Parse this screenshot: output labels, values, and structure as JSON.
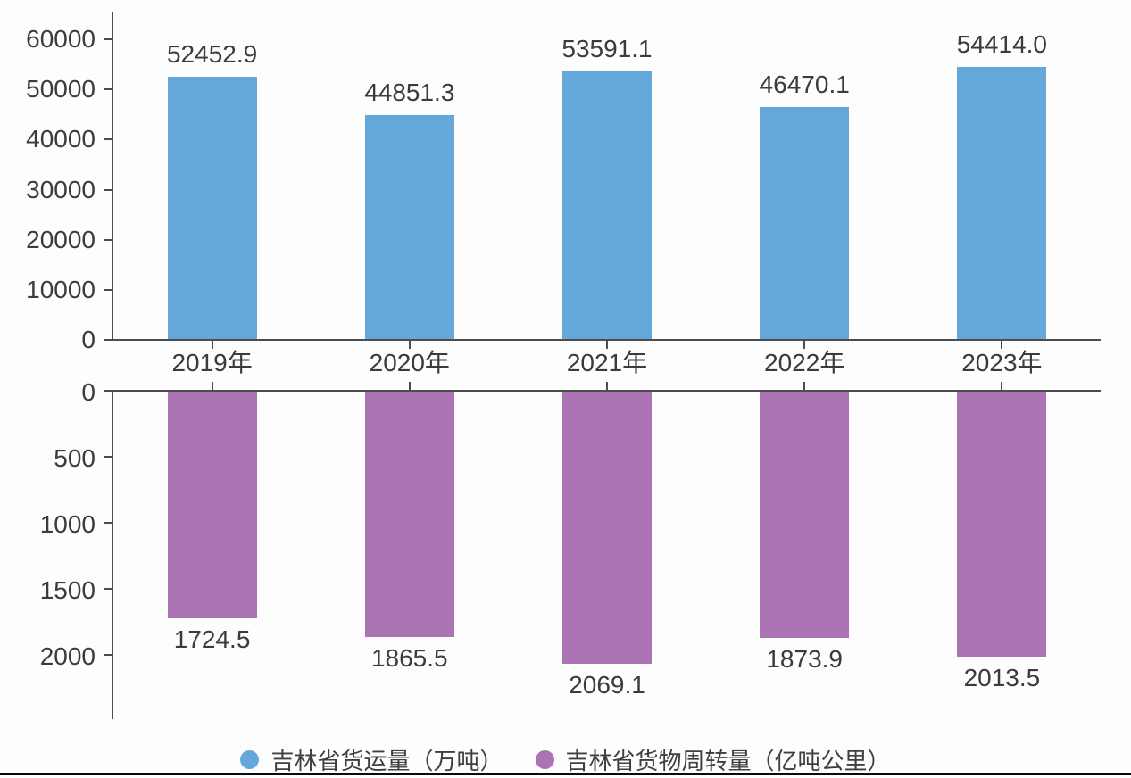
{
  "chart_data": {
    "type": "bar",
    "layout": "dual-panel-mirrored",
    "categories": [
      "2019年",
      "2020年",
      "2021年",
      "2022年",
      "2023年"
    ],
    "series": [
      {
        "name": "吉林省货运量（万吨）",
        "color": "#64a8db",
        "panel": "top",
        "values": [
          52452.9,
          44851.3,
          53591.1,
          46470.1,
          54414.0
        ],
        "value_labels": [
          "52452.9",
          "44851.3",
          "53591.1",
          "46470.1",
          "54414.0"
        ],
        "axis_ticks": [
          0,
          10000,
          20000,
          30000,
          40000,
          50000,
          60000
        ],
        "ylim": [
          0,
          60000
        ],
        "orientation": "up"
      },
      {
        "name": "吉林省货物周转量（亿吨公里）",
        "color": "#ab72b4",
        "panel": "bottom",
        "values": [
          1724.5,
          1865.5,
          2069.1,
          1873.9,
          2013.5
        ],
        "value_labels": [
          "1724.5",
          "1865.5",
          "2069.1",
          "1873.9",
          "2013.5"
        ],
        "axis_ticks": [
          0,
          500,
          1000,
          1500,
          2000
        ],
        "ylim": [
          0,
          2500
        ],
        "orientation": "down-inverted"
      }
    ],
    "title": "",
    "xlabel": "",
    "ylabel": "",
    "grid": false,
    "legend_position": "bottom"
  },
  "legend": {
    "items": [
      {
        "label": "吉林省货运量（万吨）",
        "color": "#64a8db"
      },
      {
        "label": "吉林省货物周转量（亿吨公里）",
        "color": "#ab72b4"
      }
    ]
  },
  "colors": {
    "bar_blue": "#64a8db",
    "bar_purple": "#ab72b4",
    "axis": "#4d4d4d",
    "text": "#3b3b3b",
    "background": "#fdfdfd",
    "bottom_border": "#0b0b0b"
  }
}
